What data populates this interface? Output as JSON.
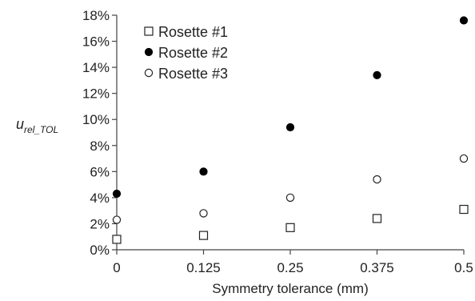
{
  "chart_data": {
    "type": "scatter",
    "title": "",
    "xlabel": "Symmetry tolerance (mm)",
    "ylabel": {
      "main": "u",
      "subscript": "rel_TOL"
    },
    "x": [
      0,
      0.125,
      0.25,
      0.375,
      0.5
    ],
    "x_tick_labels": [
      "0",
      "0.125",
      "0.25",
      "0.375",
      "0.5"
    ],
    "xlim": [
      0,
      0.5
    ],
    "ylim": [
      0,
      18
    ],
    "y_ticks": [
      0,
      2,
      4,
      6,
      8,
      10,
      12,
      14,
      16,
      18
    ],
    "y_tick_labels": [
      "0%",
      "2%",
      "4%",
      "6%",
      "8%",
      "10%",
      "12%",
      "14%",
      "16%",
      "18%"
    ],
    "y_unit": "%",
    "grid": false,
    "legend_position": "top-left",
    "series": [
      {
        "name": "Rosette #1",
        "marker": "open-square",
        "values": [
          0.8,
          1.1,
          1.7,
          2.4,
          3.1
        ]
      },
      {
        "name": "Rosette #2",
        "marker": "filled-circle",
        "values": [
          4.3,
          6.0,
          9.4,
          13.4,
          17.6
        ]
      },
      {
        "name": "Rosette #3",
        "marker": "open-circle",
        "values": [
          2.3,
          2.8,
          4.0,
          5.4,
          7.0
        ]
      }
    ]
  }
}
